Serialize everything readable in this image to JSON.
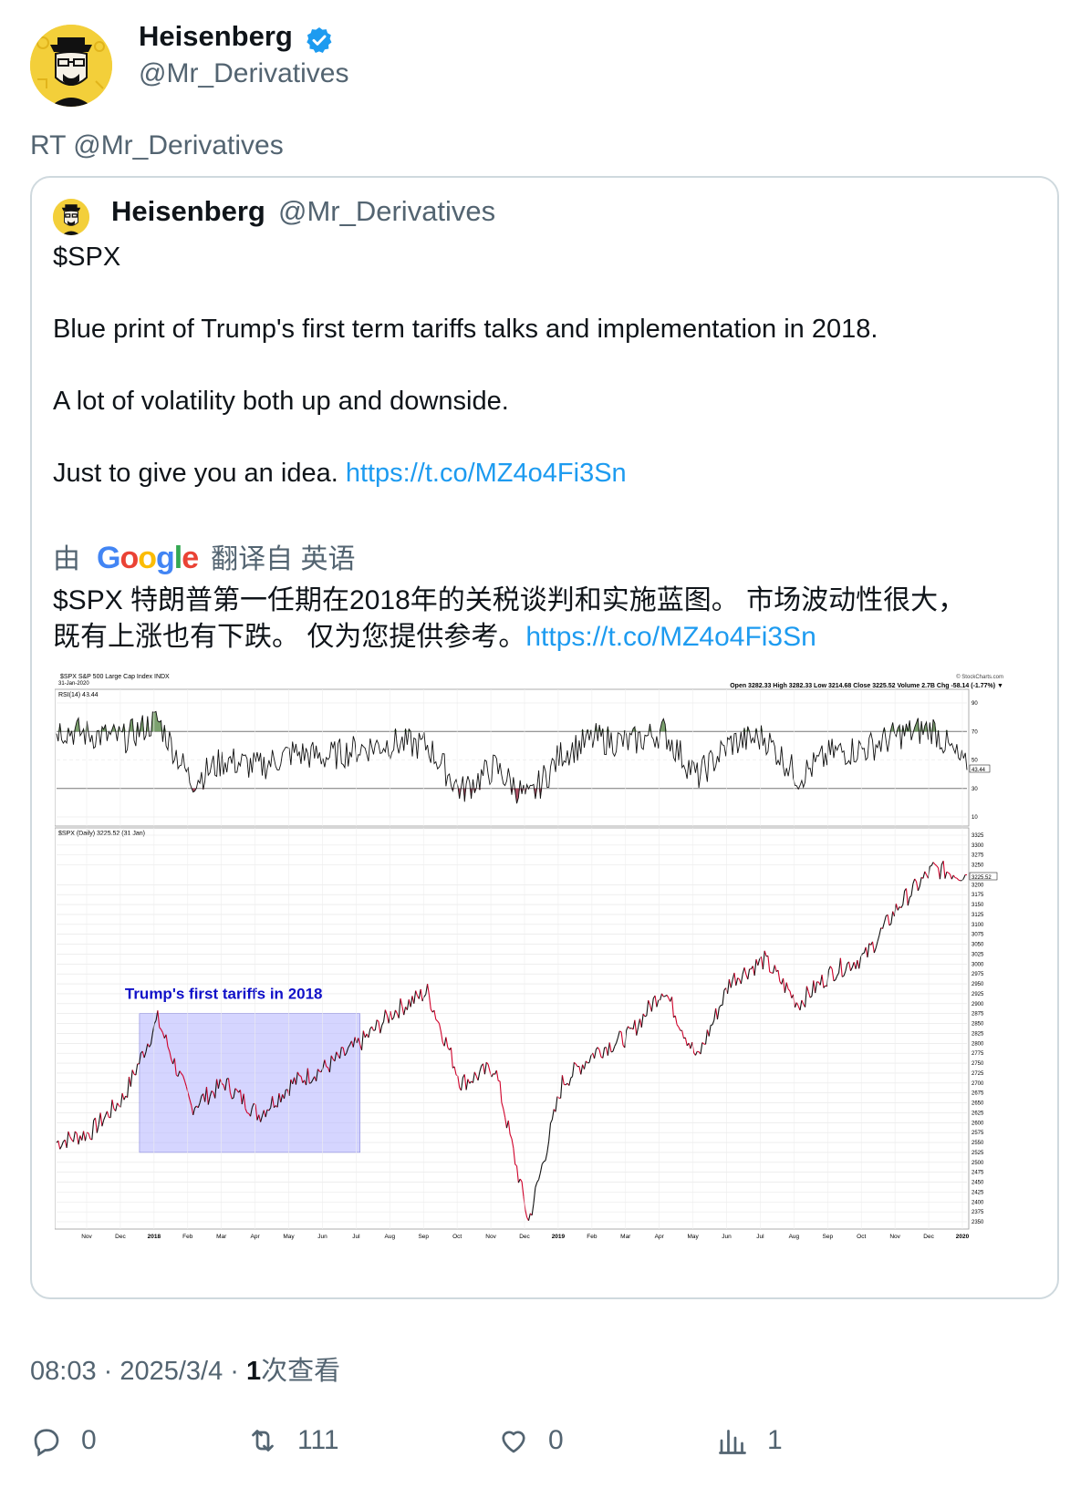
{
  "header": {
    "display_name": "Heisenberg",
    "handle": "@Mr_Derivatives",
    "retweet_label": "RT @Mr_Derivatives"
  },
  "quoted": {
    "display_name": "Heisenberg",
    "handle": "@Mr_Derivatives",
    "lines": [
      "$SPX",
      "Blue print of Trump's first term tariffs talks and implementation in 2018.",
      "A lot of volatility both up and downside.",
      "Just to give you an idea. "
    ],
    "link": "https://t.co/MZ4o4Fi3Sn",
    "translate_prefix": "由",
    "translate_brand": "Google",
    "translate_suffix": "翻译自 英语",
    "translated_line1": "$SPX 特朗普第一任期在2018年的关税谈判和实施蓝图。 市场波动性很大，",
    "translated_line2": "既有上涨也有下跌。 仅为您提供参考。"
  },
  "chart_data": {
    "type": "line",
    "title": "$SPX S&P 500 Large Cap Index INDX",
    "date_label": "31-Jan-2020",
    "watermark": "© StockCharts.com",
    "ohlc_line": "Open 3282.33  High 3282.33  Low 3214.68  Close 3225.52  Volume 2.7B  Chg -58.14 (-1.77%) ▼",
    "rsi_label": "RSI(14) 43.44",
    "rsi_value_tag": "43.44",
    "price_label": "$SPX (Daily) 3225.52 (31 Jan)",
    "price_value_tag": "3225.52",
    "annotation": "Trump's first tariffs in 2018",
    "rsi_ticks": [
      90,
      70,
      50,
      30,
      10
    ],
    "price_ticks": [
      3325,
      3300,
      3275,
      3250,
      3200,
      3175,
      3150,
      3125,
      3100,
      3075,
      3050,
      3025,
      3000,
      2975,
      2950,
      2925,
      2900,
      2875,
      2850,
      2825,
      2800,
      2775,
      2750,
      2725,
      2700,
      2675,
      2650,
      2625,
      2600,
      2575,
      2550,
      2525,
      2500,
      2475,
      2450,
      2425,
      2400,
      2375,
      2350
    ],
    "x_ticks": [
      "Nov",
      "Dec",
      "2018",
      "Feb",
      "Mar",
      "Apr",
      "May",
      "Jun",
      "Jul",
      "Aug",
      "Sep",
      "Oct",
      "Nov",
      "Dec",
      "2019",
      "Feb",
      "Mar",
      "Apr",
      "May",
      "Jun",
      "Jul",
      "Aug",
      "Sep",
      "Oct",
      "Nov",
      "Dec",
      "2020"
    ],
    "series": [
      {
        "name": "$SPX",
        "x": [
          "2017-10",
          "2017-11",
          "2017-12",
          "2018-01",
          "2018-02",
          "2018-03",
          "2018-04",
          "2018-05",
          "2018-06",
          "2018-07",
          "2018-08",
          "2018-09",
          "2018-10",
          "2018-11",
          "2018-12",
          "2019-01",
          "2019-02",
          "2019-03",
          "2019-04",
          "2019-05",
          "2019-06",
          "2019-07",
          "2019-08",
          "2019-09",
          "2019-10",
          "2019-11",
          "2019-12",
          "2020-01"
        ],
        "values": [
          2550,
          2575,
          2665,
          2860,
          2640,
          2700,
          2620,
          2700,
          2740,
          2800,
          2880,
          2930,
          2700,
          2740,
          2350,
          2700,
          2780,
          2820,
          2940,
          2760,
          2960,
          3010,
          2900,
          2980,
          3020,
          3150,
          3240,
          3225
        ]
      },
      {
        "name": "RSI(14)",
        "x": [
          "2017-10",
          "2017-11",
          "2017-12",
          "2018-01",
          "2018-02",
          "2018-03",
          "2018-04",
          "2018-05",
          "2018-06",
          "2018-07",
          "2018-08",
          "2018-09",
          "2018-10",
          "2018-11",
          "2018-12",
          "2019-01",
          "2019-02",
          "2019-03",
          "2019-04",
          "2019-05",
          "2019-06",
          "2019-07",
          "2019-08",
          "2019-09",
          "2019-10",
          "2019-11",
          "2019-12",
          "2020-01"
        ],
        "values": [
          72,
          68,
          65,
          78,
          35,
          50,
          45,
          55,
          52,
          58,
          62,
          60,
          28,
          45,
          22,
          55,
          65,
          62,
          70,
          38,
          62,
          66,
          38,
          55,
          58,
          68,
          72,
          43
        ]
      }
    ],
    "shaded_region": {
      "from": "2018-01",
      "to": "2018-07"
    }
  },
  "meta": {
    "time": "08:03 · 2025/3/4 · ",
    "views_count": "1",
    "views_label": "次查看"
  },
  "actions": {
    "replies": "0",
    "retweets": "111",
    "likes": "0",
    "views": "1"
  },
  "colors": {
    "link": "#1d9bf0",
    "muted": "#536471",
    "verified": "#1d9bf0",
    "down_candle": "#d0002a",
    "shade": "#b3b3ff",
    "annotation": "#1010c8"
  }
}
